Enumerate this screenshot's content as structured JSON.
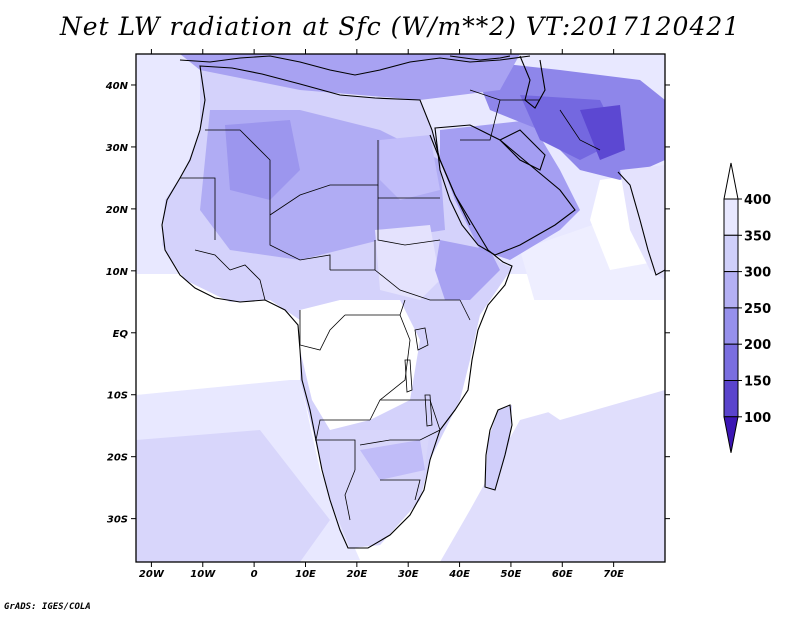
{
  "title": "Net LW radiation at Sfc (W/m**2) VT:2017120421",
  "credit": "GrADS: IGES/COLA",
  "map": {
    "projection": "latlon",
    "lon_range": [
      -23,
      80
    ],
    "lat_range": [
      -37,
      45
    ],
    "x_ticks": [
      {
        "lon": -20,
        "label": "20W"
      },
      {
        "lon": -10,
        "label": "10W"
      },
      {
        "lon": 0,
        "label": "0"
      },
      {
        "lon": 10,
        "label": "10E"
      },
      {
        "lon": 20,
        "label": "20E"
      },
      {
        "lon": 30,
        "label": "30E"
      },
      {
        "lon": 40,
        "label": "40E"
      },
      {
        "lon": 50,
        "label": "50E"
      },
      {
        "lon": 60,
        "label": "60E"
      },
      {
        "lon": 70,
        "label": "70E"
      }
    ],
    "y_ticks": [
      {
        "lat": 40,
        "label": "40N"
      },
      {
        "lat": 30,
        "label": "30N"
      },
      {
        "lat": 20,
        "label": "20N"
      },
      {
        "lat": 10,
        "label": "10N"
      },
      {
        "lat": 0,
        "label": "EQ"
      },
      {
        "lat": -10,
        "label": "10S"
      },
      {
        "lat": -20,
        "label": "20S"
      },
      {
        "lat": -30,
        "label": "30S"
      }
    ]
  },
  "colorbar": {
    "levels": [
      "400",
      "350",
      "300",
      "250",
      "200",
      "150",
      "100"
    ],
    "colors": [
      "#ffffff",
      "#e8e8ff",
      "#d0d0fa",
      "#b4b0f4",
      "#9690ec",
      "#7a6ee0",
      "#5a44cc",
      "#3c16b4"
    ]
  }
}
